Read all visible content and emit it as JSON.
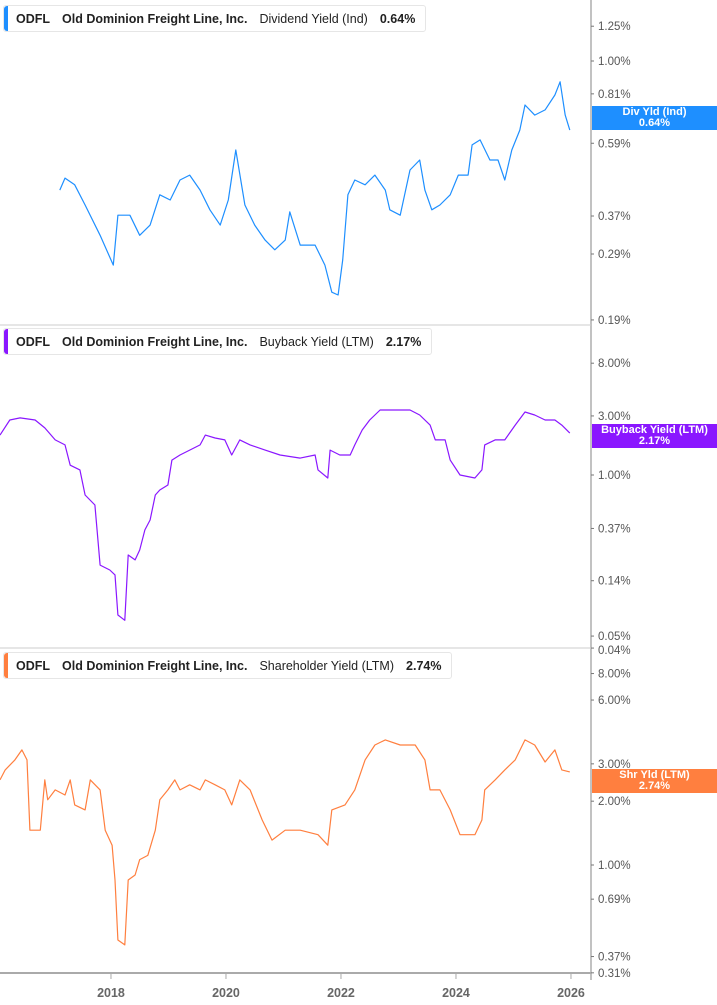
{
  "colors": {
    "dividend": "#1e8fff",
    "buyback": "#8a17ff",
    "shareholder": "#ff7f3f"
  },
  "x_axis": {
    "ticks": [
      2018,
      2020,
      2022,
      2024,
      2026
    ],
    "tick_labels": [
      "2018",
      "2020",
      "2022",
      "2024",
      "2026"
    ]
  },
  "chart_data": [
    {
      "type": "line",
      "ticker": "ODFL",
      "company": "Old Dominion Freight Line, Inc.",
      "metric": "Dividend Yield (Ind)",
      "value": "0.64%",
      "badge_title": "Div Yld (Ind)",
      "badge_value": "0.64%",
      "y_scale": "log",
      "yticks": [
        1.25,
        1.0,
        0.81,
        0.59,
        0.37,
        0.29,
        0.19
      ],
      "ytick_labels": [
        "1.25%",
        "1.00%",
        "0.81%",
        "0.59%",
        "0.37%",
        "0.29%",
        "0.19%"
      ],
      "points": [
        [
          2017.11,
          0.437
        ],
        [
          2017.2,
          0.472
        ],
        [
          2017.37,
          0.452
        ],
        [
          2017.55,
          0.397
        ],
        [
          2017.81,
          0.327
        ],
        [
          2018.04,
          0.27
        ],
        [
          2018.12,
          0.372
        ],
        [
          2018.33,
          0.372
        ],
        [
          2018.5,
          0.327
        ],
        [
          2018.68,
          0.349
        ],
        [
          2018.85,
          0.424
        ],
        [
          2019.03,
          0.41
        ],
        [
          2019.2,
          0.466
        ],
        [
          2019.37,
          0.481
        ],
        [
          2019.55,
          0.437
        ],
        [
          2019.72,
          0.385
        ],
        [
          2019.9,
          0.349
        ],
        [
          2020.04,
          0.41
        ],
        [
          2020.17,
          0.565
        ],
        [
          2020.33,
          0.397
        ],
        [
          2020.5,
          0.349
        ],
        [
          2020.68,
          0.317
        ],
        [
          2020.85,
          0.298
        ],
        [
          2021.03,
          0.317
        ],
        [
          2021.11,
          0.38
        ],
        [
          2021.29,
          0.307
        ],
        [
          2021.55,
          0.307
        ],
        [
          2021.72,
          0.27
        ],
        [
          2021.84,
          0.227
        ],
        [
          2021.95,
          0.223
        ],
        [
          2022.03,
          0.279
        ],
        [
          2022.12,
          0.424
        ],
        [
          2022.24,
          0.466
        ],
        [
          2022.42,
          0.452
        ],
        [
          2022.59,
          0.481
        ],
        [
          2022.77,
          0.437
        ],
        [
          2022.85,
          0.385
        ],
        [
          2023.03,
          0.372
        ],
        [
          2023.2,
          0.497
        ],
        [
          2023.37,
          0.53
        ],
        [
          2023.46,
          0.437
        ],
        [
          2023.58,
          0.385
        ],
        [
          2023.72,
          0.397
        ],
        [
          2023.9,
          0.424
        ],
        [
          2024.04,
          0.481
        ],
        [
          2024.21,
          0.481
        ],
        [
          2024.28,
          0.584
        ],
        [
          2024.42,
          0.603
        ],
        [
          2024.59,
          0.53
        ],
        [
          2024.73,
          0.53
        ],
        [
          2024.85,
          0.466
        ],
        [
          2024.97,
          0.565
        ],
        [
          2025.11,
          0.642
        ],
        [
          2025.2,
          0.754
        ],
        [
          2025.37,
          0.707
        ],
        [
          2025.55,
          0.731
        ],
        [
          2025.72,
          0.804
        ],
        [
          2025.81,
          0.875
        ],
        [
          2025.9,
          0.707
        ],
        [
          2025.98,
          0.642
        ]
      ]
    },
    {
      "type": "line",
      "ticker": "ODFL",
      "company": "Old Dominion Freight Line, Inc.",
      "metric": "Buyback Yield (LTM)",
      "value": "2.17%",
      "badge_title": "Buyback Yield (LTM)",
      "badge_value": "2.17%",
      "y_scale": "log",
      "yticks": [
        8.0,
        3.0,
        1.0,
        0.37,
        0.14,
        0.05,
        0.04
      ],
      "ytick_labels": [
        "8.00%",
        "3.00%",
        "1.00%",
        "0.37%",
        "0.14%",
        "0.05%",
        "0.04%"
      ],
      "points": [
        [
          2016.07,
          2.1
        ],
        [
          2016.24,
          2.78
        ],
        [
          2016.42,
          2.89
        ],
        [
          2016.68,
          2.78
        ],
        [
          2016.85,
          2.4
        ],
        [
          2017.03,
          1.92
        ],
        [
          2017.2,
          1.75
        ],
        [
          2017.29,
          1.2
        ],
        [
          2017.46,
          1.1
        ],
        [
          2017.55,
          0.69
        ],
        [
          2017.72,
          0.572
        ],
        [
          2017.81,
          0.187
        ],
        [
          2017.98,
          0.171
        ],
        [
          2018.07,
          0.156
        ],
        [
          2018.12,
          0.074
        ],
        [
          2018.24,
          0.067
        ],
        [
          2018.3,
          0.226
        ],
        [
          2018.42,
          0.206
        ],
        [
          2018.5,
          0.248
        ],
        [
          2018.59,
          0.36
        ],
        [
          2018.68,
          0.433
        ],
        [
          2018.77,
          0.69
        ],
        [
          2018.85,
          0.757
        ],
        [
          2018.99,
          0.83
        ],
        [
          2019.06,
          1.32
        ],
        [
          2019.2,
          1.45
        ],
        [
          2019.37,
          1.59
        ],
        [
          2019.55,
          1.75
        ],
        [
          2019.64,
          2.1
        ],
        [
          2019.81,
          1.99
        ],
        [
          2019.98,
          1.92
        ],
        [
          2020.1,
          1.45
        ],
        [
          2020.24,
          1.92
        ],
        [
          2020.42,
          1.75
        ],
        [
          2020.68,
          1.59
        ],
        [
          2020.94,
          1.45
        ],
        [
          2021.29,
          1.37
        ],
        [
          2021.55,
          1.45
        ],
        [
          2021.6,
          1.1
        ],
        [
          2021.77,
          0.946
        ],
        [
          2021.81,
          1.59
        ],
        [
          2021.98,
          1.45
        ],
        [
          2022.16,
          1.45
        ],
        [
          2022.24,
          1.75
        ],
        [
          2022.37,
          2.31
        ],
        [
          2022.5,
          2.78
        ],
        [
          2022.68,
          3.35
        ],
        [
          2022.94,
          3.35
        ],
        [
          2023.2,
          3.35
        ],
        [
          2023.37,
          3.05
        ],
        [
          2023.55,
          2.53
        ],
        [
          2023.64,
          1.92
        ],
        [
          2023.81,
          1.92
        ],
        [
          2023.9,
          1.32
        ],
        [
          2024.07,
          1.0
        ],
        [
          2024.33,
          0.946
        ],
        [
          2024.45,
          1.1
        ],
        [
          2024.5,
          1.75
        ],
        [
          2024.68,
          1.92
        ],
        [
          2024.85,
          1.92
        ],
        [
          2025.03,
          2.53
        ],
        [
          2025.2,
          3.23
        ],
        [
          2025.37,
          3.05
        ],
        [
          2025.55,
          2.78
        ],
        [
          2025.72,
          2.78
        ],
        [
          2025.84,
          2.53
        ],
        [
          2025.98,
          2.18
        ]
      ]
    },
    {
      "type": "line",
      "ticker": "ODFL",
      "company": "Old Dominion Freight Line, Inc.",
      "metric": "Shareholder Yield (LTM)",
      "value": "2.74%",
      "badge_title": "Shr Yld (LTM)",
      "badge_value": "2.74%",
      "y_scale": "log",
      "yticks": [
        8.0,
        6.0,
        3.0,
        2.0,
        1.0,
        0.69,
        0.37,
        0.31
      ],
      "ytick_labels": [
        "8.00%",
        "6.00%",
        "3.00%",
        "2.00%",
        "1.00%",
        "0.69%",
        "0.37%",
        "0.31%"
      ],
      "points": [
        [
          2016.07,
          2.52
        ],
        [
          2016.16,
          2.81
        ],
        [
          2016.33,
          3.13
        ],
        [
          2016.45,
          3.49
        ],
        [
          2016.54,
          3.13
        ],
        [
          2016.59,
          1.46
        ],
        [
          2016.77,
          1.46
        ],
        [
          2016.85,
          2.52
        ],
        [
          2016.9,
          2.03
        ],
        [
          2017.03,
          2.26
        ],
        [
          2017.2,
          2.14
        ],
        [
          2017.29,
          2.52
        ],
        [
          2017.37,
          1.92
        ],
        [
          2017.55,
          1.82
        ],
        [
          2017.64,
          2.52
        ],
        [
          2017.81,
          2.26
        ],
        [
          2017.9,
          1.46
        ],
        [
          2018.02,
          1.24
        ],
        [
          2018.07,
          0.85
        ],
        [
          2018.12,
          0.443
        ],
        [
          2018.24,
          0.42
        ],
        [
          2018.3,
          0.85
        ],
        [
          2018.42,
          0.897
        ],
        [
          2018.5,
          1.06
        ],
        [
          2018.64,
          1.11
        ],
        [
          2018.77,
          1.46
        ],
        [
          2018.85,
          2.03
        ],
        [
          2018.99,
          2.26
        ],
        [
          2019.11,
          2.52
        ],
        [
          2019.2,
          2.26
        ],
        [
          2019.37,
          2.39
        ],
        [
          2019.55,
          2.26
        ],
        [
          2019.64,
          2.52
        ],
        [
          2019.81,
          2.39
        ],
        [
          2019.98,
          2.26
        ],
        [
          2020.1,
          1.92
        ],
        [
          2020.24,
          2.52
        ],
        [
          2020.42,
          2.26
        ],
        [
          2020.63,
          1.63
        ],
        [
          2020.8,
          1.31
        ],
        [
          2021.03,
          1.46
        ],
        [
          2021.29,
          1.46
        ],
        [
          2021.6,
          1.39
        ],
        [
          2021.77,
          1.24
        ],
        [
          2021.84,
          1.82
        ],
        [
          2022.07,
          1.92
        ],
        [
          2022.24,
          2.26
        ],
        [
          2022.42,
          3.13
        ],
        [
          2022.59,
          3.68
        ],
        [
          2022.77,
          3.89
        ],
        [
          2023.03,
          3.68
        ],
        [
          2023.29,
          3.68
        ],
        [
          2023.46,
          3.13
        ],
        [
          2023.55,
          2.26
        ],
        [
          2023.72,
          2.26
        ],
        [
          2023.9,
          1.82
        ],
        [
          2024.07,
          1.39
        ],
        [
          2024.33,
          1.39
        ],
        [
          2024.45,
          1.63
        ],
        [
          2024.5,
          2.26
        ],
        [
          2024.68,
          2.52
        ],
        [
          2024.85,
          2.81
        ],
        [
          2025.03,
          3.13
        ],
        [
          2025.2,
          3.89
        ],
        [
          2025.37,
          3.68
        ],
        [
          2025.55,
          3.06
        ],
        [
          2025.72,
          3.49
        ],
        [
          2025.84,
          2.81
        ],
        [
          2025.98,
          2.75
        ]
      ]
    }
  ]
}
